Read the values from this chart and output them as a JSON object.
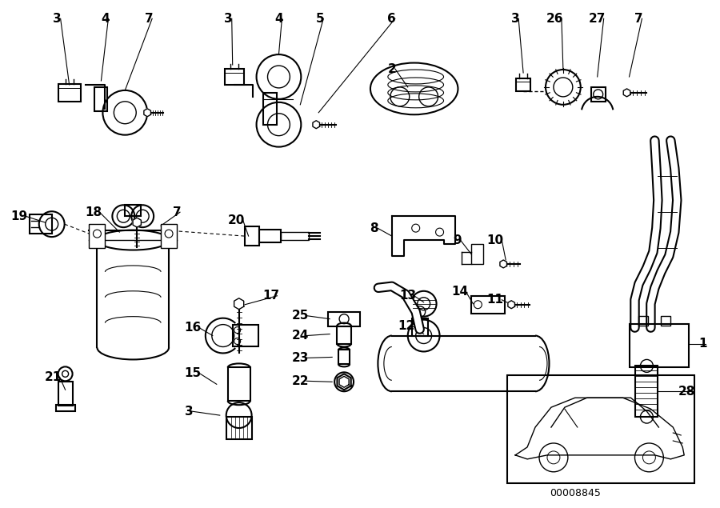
{
  "background_color": "#ffffff",
  "line_color": "#000000",
  "text_color": "#000000",
  "diagram_num": "00008845",
  "figsize": [
    9.0,
    6.35
  ],
  "dpi": 100
}
